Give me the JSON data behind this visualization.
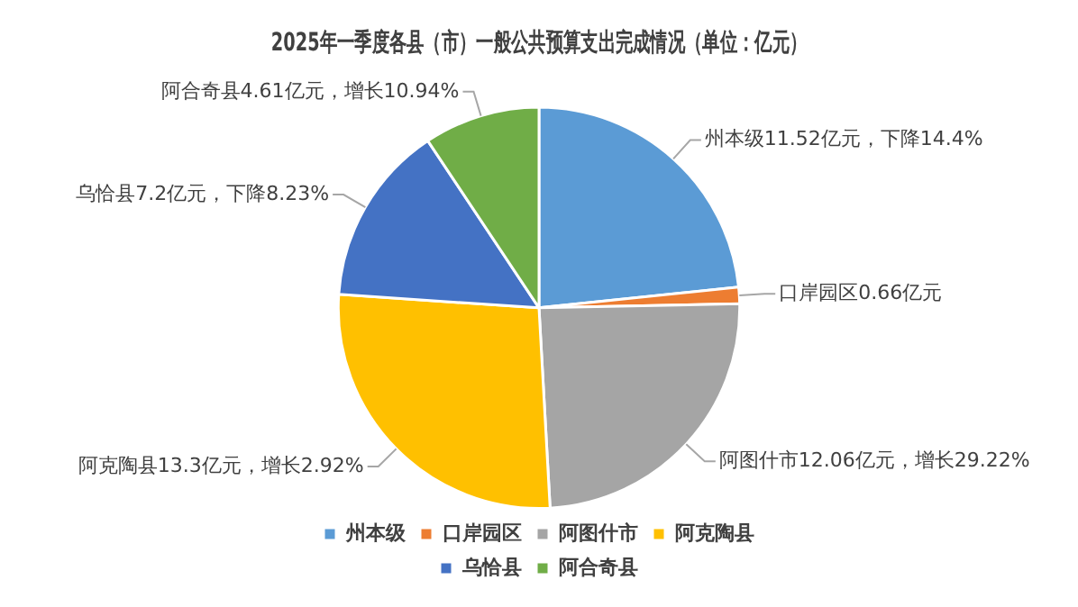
{
  "chart_data": {
    "type": "pie",
    "title": "2025年一季度各县（市）一般公共预算支出完成情况（单位：亿元）",
    "categories": [
      "州本级",
      "口岸园区",
      "阿图什市",
      "阿克陶县",
      "乌恰县",
      "阿合奇县"
    ],
    "values": [
      11.52,
      0.66,
      12.06,
      13.3,
      7.2,
      4.61
    ],
    "colors": [
      "#5b9bd5",
      "#ed7d31",
      "#a5a5a5",
      "#ffc000",
      "#4472c4",
      "#70ad47"
    ],
    "value_labels": [
      "州本级11.52亿元，下降14.4%",
      "口岸园区0.66亿元",
      "阿图什市12.06亿元，增长29.22%",
      "阿克陶县13.3亿元，增长2.92%",
      "乌恰县7.2亿元，下降8.23%",
      "阿合奇县4.61亿元，增长10.94%"
    ],
    "legend": "bottom"
  }
}
